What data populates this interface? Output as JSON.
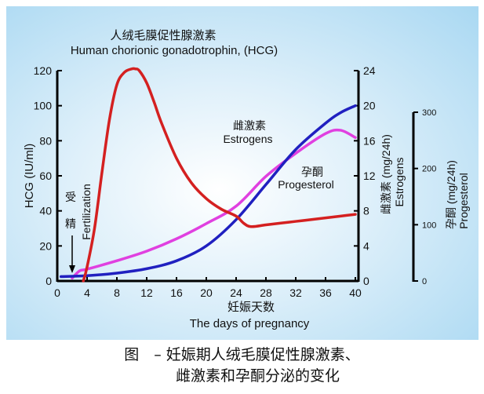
{
  "chart_data": {
    "type": "line",
    "title_cn": "人绒毛膜促性腺激素",
    "title": "Human chorionic gonadotrophin, (HCG)",
    "xlabel_cn": "妊娠天数",
    "xlabel": "The days of pregnancy",
    "xlim": [
      0,
      40
    ],
    "xticks": [
      0,
      4,
      8,
      12,
      16,
      20,
      24,
      28,
      32,
      36,
      40
    ],
    "axes": {
      "left": {
        "label": "HCG (IU/ml)",
        "lim": [
          0,
          120
        ],
        "ticks": [
          0,
          20,
          40,
          60,
          80,
          100,
          120
        ]
      },
      "right1": {
        "label_cn": "雌激素 (mg/24h)",
        "label": "Estrogens",
        "lim": [
          0,
          24
        ],
        "ticks": [
          0,
          4,
          8,
          12,
          16,
          20,
          24
        ]
      },
      "right2": {
        "label_cn": "孕酮 (mg/24h)",
        "label": "Progesterol",
        "lim": [
          0,
          300
        ],
        "ticks": [
          0,
          100,
          200,
          300
        ]
      }
    },
    "series": [
      {
        "name": "HCG",
        "axis": "left",
        "color": "#d42020",
        "x": [
          3.5,
          4,
          5,
          6,
          7,
          8,
          9,
          10,
          10.5,
          11,
          12,
          13,
          14,
          16,
          18,
          20,
          22,
          24,
          25,
          26,
          28,
          30,
          32,
          34,
          36,
          38,
          40
        ],
        "y": [
          0,
          8,
          30,
          62,
          92,
          112,
          119,
          121,
          121,
          120,
          113,
          102,
          90,
          70,
          56,
          47,
          41,
          37,
          33,
          31,
          32,
          33,
          34,
          35,
          36,
          37,
          38
        ]
      },
      {
        "name": "Estrogens",
        "label_cn": "雌激素",
        "axis": "right1",
        "color": "#2020c0",
        "x": [
          0.5,
          4,
          8,
          12,
          16,
          20,
          24,
          28,
          32,
          36,
          38,
          40
        ],
        "y": [
          0.5,
          0.6,
          0.9,
          1.4,
          2.3,
          4,
          7,
          11,
          15,
          18,
          19.2,
          20
        ]
      },
      {
        "name": "Progesterol",
        "label_cn": "孕酮",
        "axis": "right2",
        "color": "#e040e0",
        "x": [
          2,
          3,
          4,
          8,
          12,
          16,
          20,
          24,
          28,
          32,
          36,
          38,
          40
        ],
        "y": [
          5,
          18,
          21,
          36,
          53,
          75,
          102,
          133,
          186,
          227,
          262,
          268,
          255
        ]
      }
    ],
    "annotations": {
      "fertilization_cn_1": "受",
      "fertilization_cn_2": "精",
      "fertilization": "Fertilization",
      "fertilization_day": 2
    }
  },
  "caption": {
    "line1": "图　–  妊娠期人绒毛膜促性腺激素、",
    "line2": "雌激素和孕酮分泌的变化"
  }
}
